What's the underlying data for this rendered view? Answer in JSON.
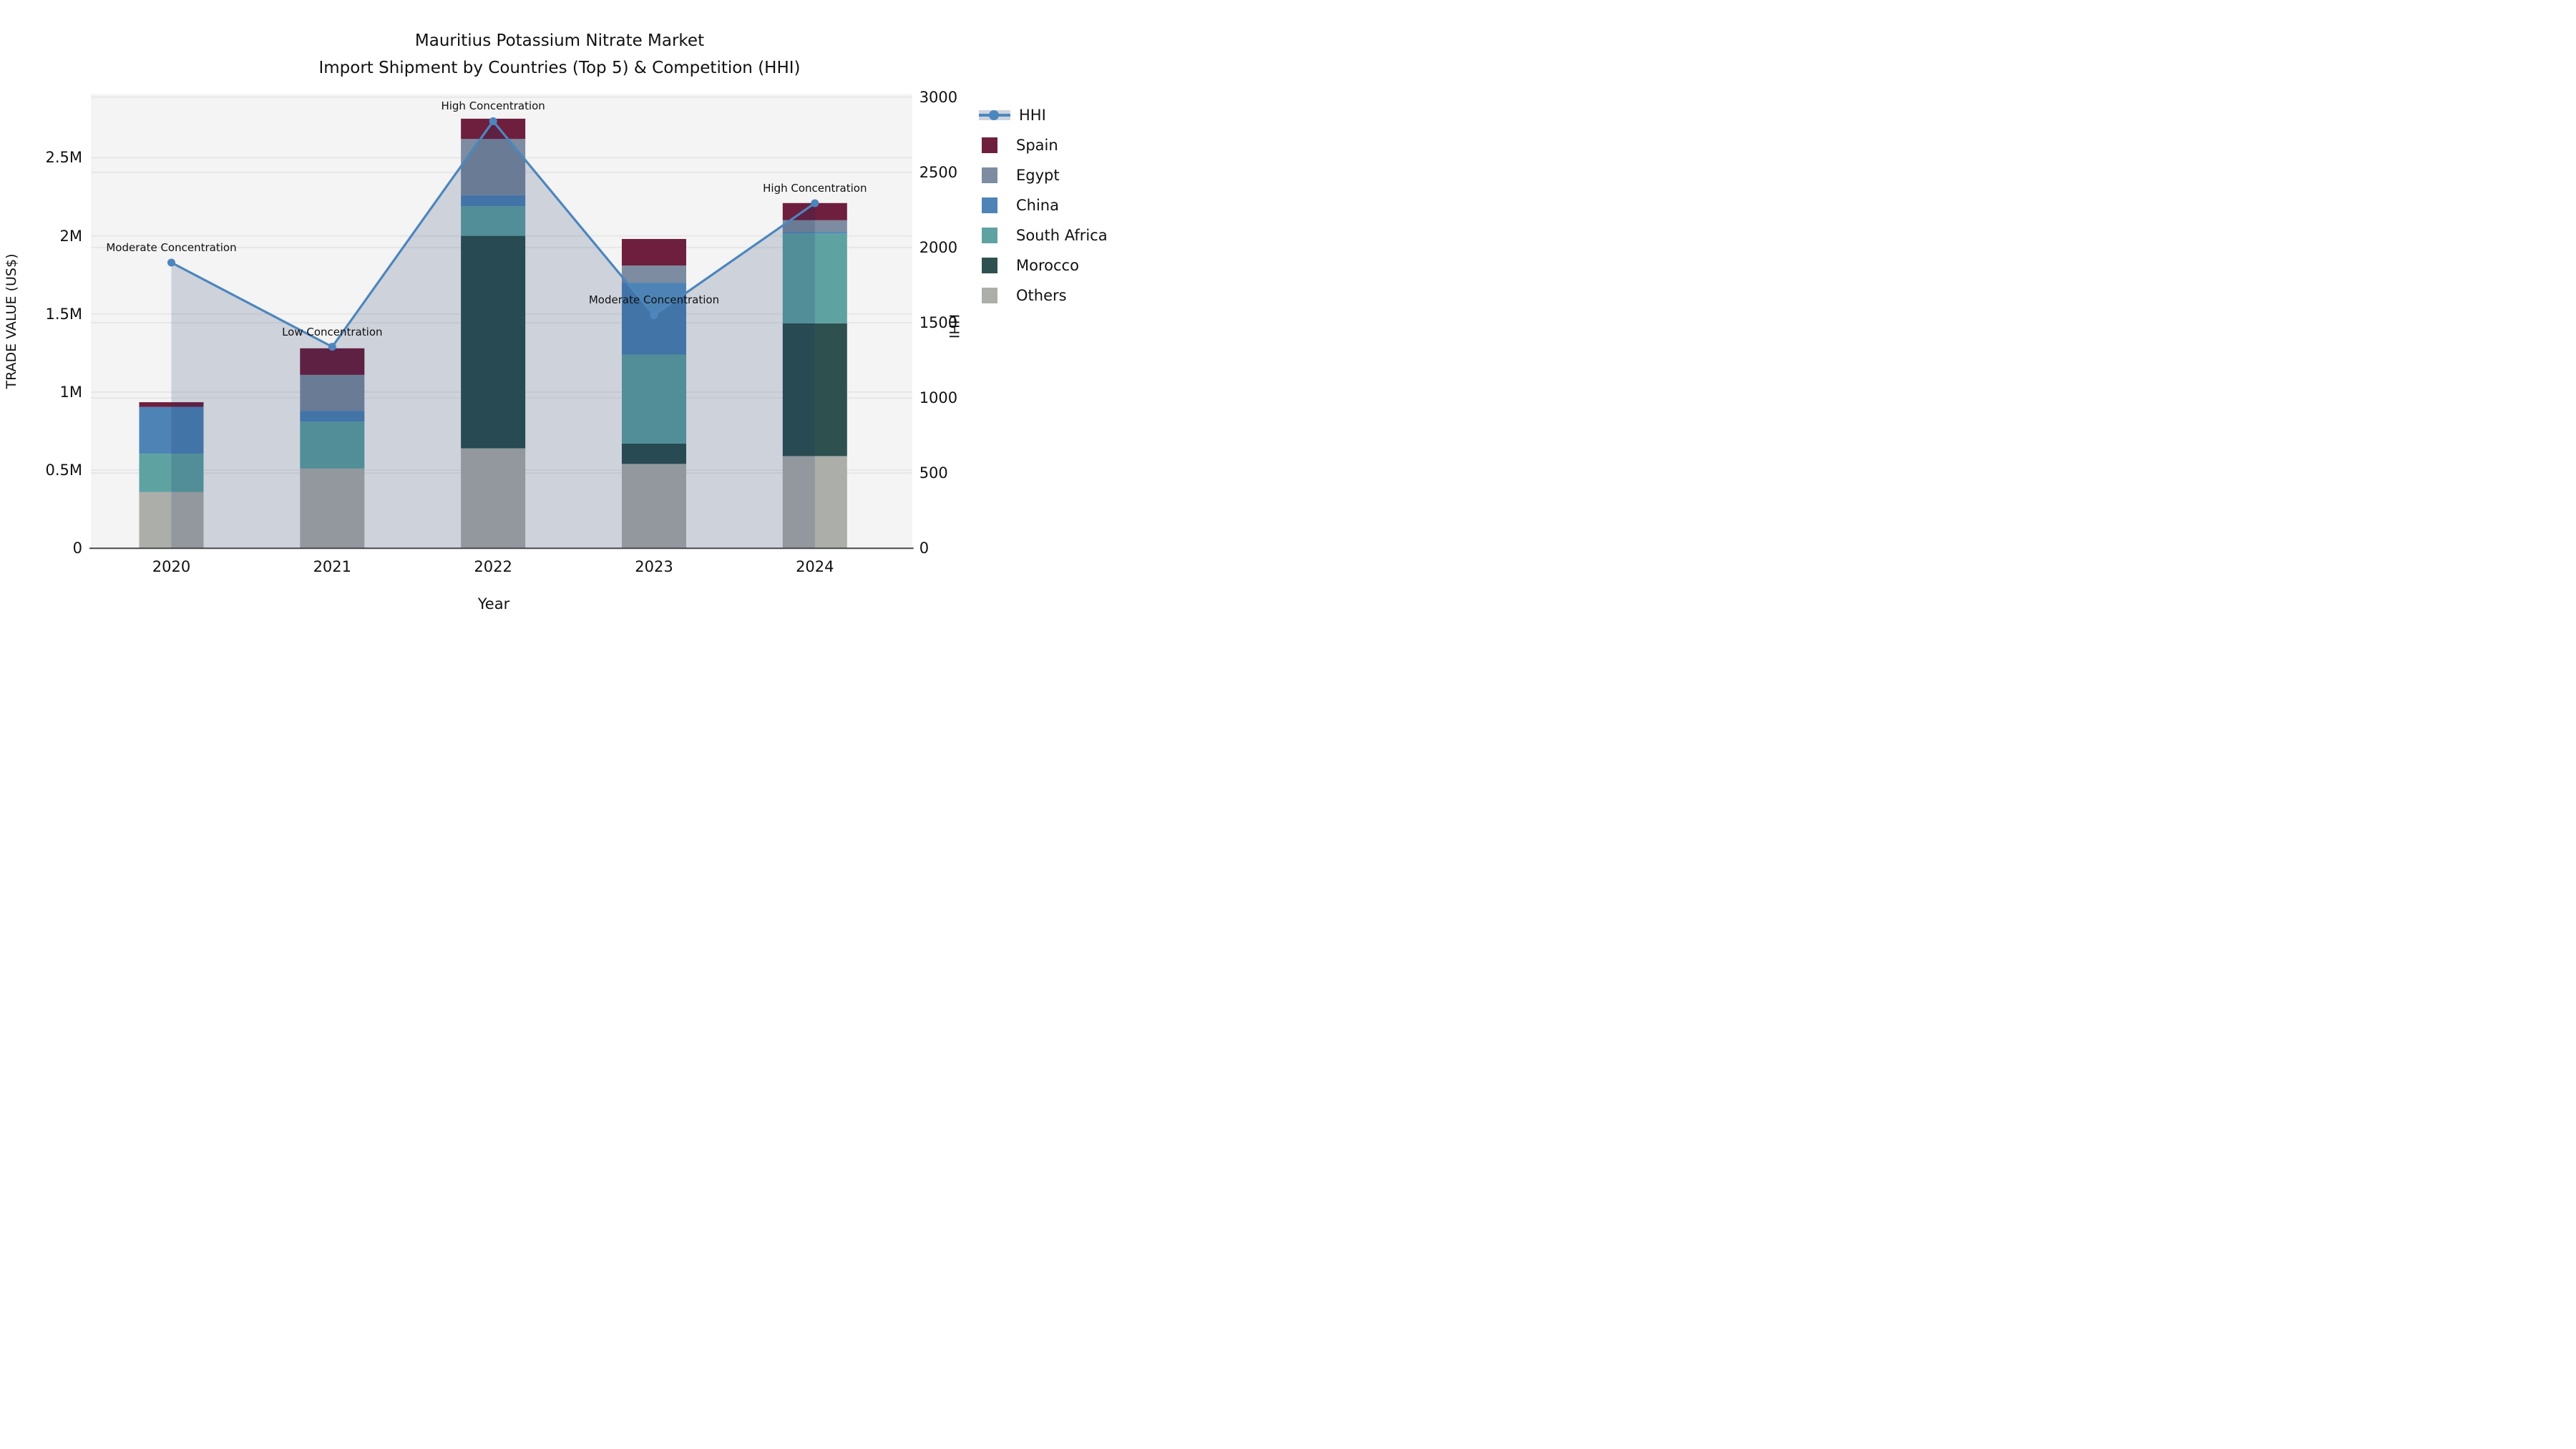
{
  "title": {
    "line1": "Mauritius Potassium Nitrate Market",
    "line2": "Import Shipment by Countries (Top 5) & Competition (HHI)"
  },
  "axes": {
    "left": {
      "label": "TRADE VALUE (US$)",
      "ticks": [
        "0",
        "0.5M",
        "1M",
        "1.5M",
        "2M",
        "2.5M"
      ],
      "tick_values": [
        0,
        0.5,
        1,
        1.5,
        2,
        2.5
      ],
      "max": 2.907
    },
    "right": {
      "label": "HHI",
      "ticks": [
        "0",
        "500",
        "1000",
        "1500",
        "2000",
        "2500",
        "3000"
      ],
      "tick_values": [
        0,
        500,
        1000,
        1500,
        2000,
        2500,
        3000
      ],
      "max": 3020
    },
    "x": {
      "label": "Year",
      "ticks": [
        "2020",
        "2021",
        "2022",
        "2023",
        "2024"
      ]
    }
  },
  "legend": {
    "items": [
      {
        "label": "HHI",
        "type": "line",
        "color": "#4d86bd"
      },
      {
        "label": "Spain",
        "type": "box",
        "color": "#6e1f3e"
      },
      {
        "label": "Egypt",
        "type": "box",
        "color": "#7d8ca0"
      },
      {
        "label": "China",
        "type": "box",
        "color": "#4d84b5"
      },
      {
        "label": "South Africa",
        "type": "box",
        "color": "#5fa2a2"
      },
      {
        "label": "Morocco",
        "type": "box",
        "color": "#2e5150"
      },
      {
        "label": "Others",
        "type": "box",
        "color": "#acaeaa"
      }
    ]
  },
  "colors": {
    "plot_bg": "#f4f4f4",
    "grid": "#e7e7e7",
    "axis_line": "#4a4a4a",
    "hhi_line": "#4d86bd",
    "hhi_area": "rgba(10,35,95,0.16)"
  },
  "chart_data": {
    "type": "bar",
    "subtype": "stacked-bars-with-line-overlay",
    "categories": [
      "2020",
      "2021",
      "2022",
      "2023",
      "2024"
    ],
    "bar_unit": "million US$",
    "series": [
      {
        "name": "Others",
        "color": "#acaeaa",
        "values": [
          0.36,
          0.51,
          0.64,
          0.54,
          0.59
        ]
      },
      {
        "name": "Morocco",
        "color": "#2e5150",
        "values": [
          0.0,
          0.0,
          1.36,
          0.13,
          0.85
        ]
      },
      {
        "name": "South Africa",
        "color": "#5fa2a2",
        "values": [
          0.245,
          0.3,
          0.19,
          0.57,
          0.575
        ]
      },
      {
        "name": "China",
        "color": "#4d84b5",
        "values": [
          0.3,
          0.07,
          0.07,
          0.46,
          0.01
        ]
      },
      {
        "name": "Egypt",
        "color": "#7d8ca0",
        "values": [
          0.0,
          0.23,
          0.36,
          0.11,
          0.075
        ]
      },
      {
        "name": "Spain",
        "color": "#6e1f3e",
        "values": [
          0.03,
          0.17,
          0.13,
          0.17,
          0.11
        ]
      }
    ],
    "bar_totals": [
      0.935,
      1.28,
      2.75,
      1.98,
      2.21
    ],
    "line_series": {
      "name": "HHI",
      "axis": "right",
      "color": "#4d86bd",
      "values": [
        1900,
        1340,
        2840,
        1550,
        2295
      ]
    },
    "annotations": [
      "Moderate Concentration",
      "Low Concentration",
      "High Concentration",
      "Moderate Concentration",
      "High Concentration"
    ],
    "title": "Mauritius Potassium Nitrate Market Import Shipment by Countries (Top 5) & Competition (HHI)",
    "xlabel": "Year",
    "ylabel_left": "TRADE VALUE (US$)",
    "ylabel_right": "HHI",
    "ylim_left": [
      0,
      2.907
    ],
    "ylim_right": [
      0,
      3020
    ],
    "grid": true,
    "legend_position": "right"
  }
}
